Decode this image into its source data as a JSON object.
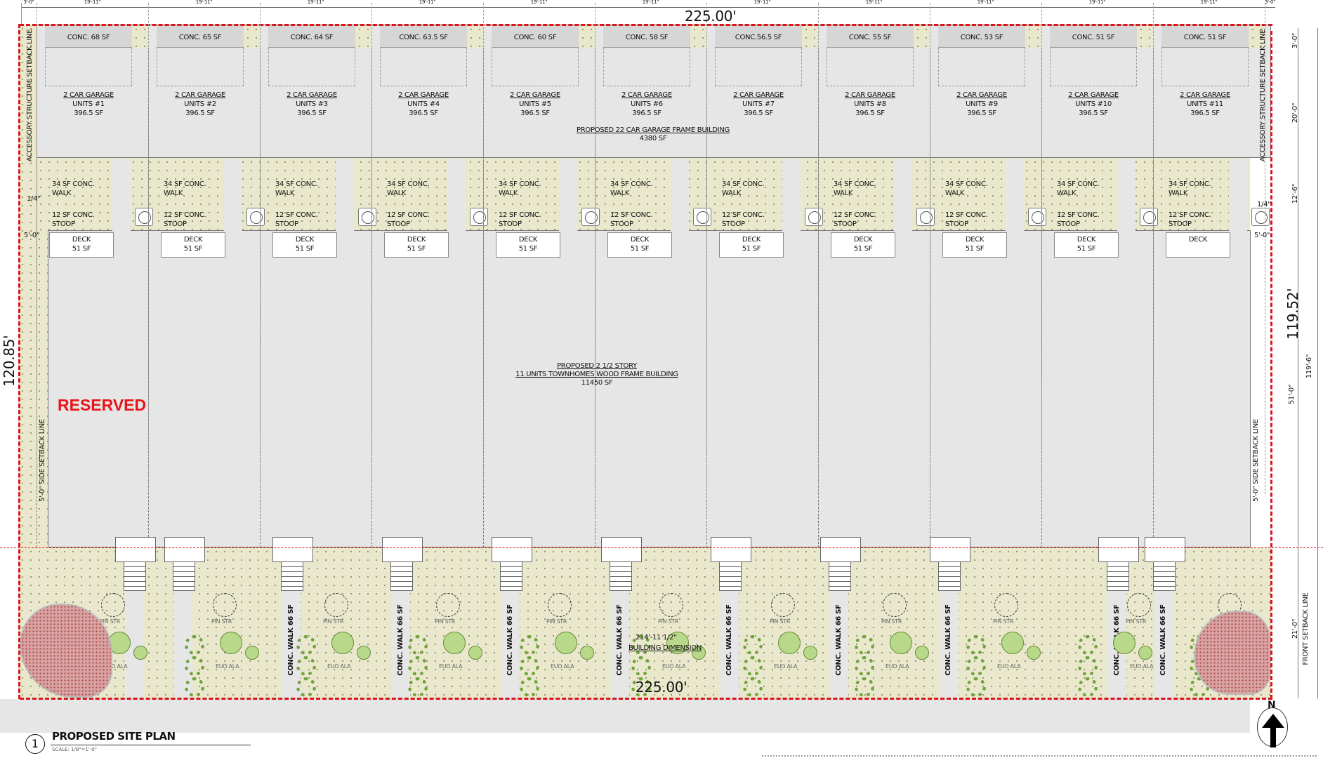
{
  "dimensions": {
    "top_total": "225.00'",
    "bottom_total": "225.00'",
    "left_depth": "120.85'",
    "right_depth": "119.52'",
    "right_inner": "119'-6\"",
    "right_building": "51'-0\"",
    "right_garage": "20'-0\"",
    "right_conc": "3'-0\"",
    "right_walk": "12'-6\"",
    "right_front": "21'-0\"",
    "top_segments": [
      "3'-0\"",
      "19'-11\"",
      "19'-11\"",
      "19'-11\"",
      "19'-11\"",
      "19'-11\"",
      "19'-11\"",
      "19'-11\"",
      "19'-11\"",
      "19'-11\"",
      "19'-11\"",
      "19'-11\"",
      "3'-0\""
    ],
    "left_quarter": "1/4\"",
    "left_five": "5'-0\"",
    "right_quarter": "1/4\"",
    "right_five": "5'-0\"",
    "building_dimension_value": "214'-11 1/2\"",
    "building_dimension_label": "BUILDING DIMENSION"
  },
  "setback_labels": {
    "accessory": "ACCESSORY STRUCTURE SETBACK LINE",
    "side": "5'-0\" SIDE SETBACK LINE",
    "front": "FRONT SETBACK LINE"
  },
  "reserved": "RESERVED",
  "reserved_color": "#e8141b",
  "property_line_color": "#d9141b",
  "garage_building": {
    "title": "PROPOSED 22 CAR  GARAGE FRAME BUILDING",
    "area": "4380 SF"
  },
  "townhome_building": {
    "line1": "PROPOSED 2 1/2 STORY",
    "line2": "11 UNITS TOWNHOMES WOOD FRAME BUILDING",
    "area": "11450 SF"
  },
  "units": [
    {
      "conc": "CONC. 68 SF",
      "garage": "2 CAR GARAGE",
      "unit": "UNITS #1",
      "area": "396.5 SF",
      "deck": "DECK",
      "deck_area": "51 SF"
    },
    {
      "conc": "CONC. 65 SF",
      "garage": "2 CAR GARAGE",
      "unit": "UNITS #2",
      "area": "396.5 SF",
      "deck": "DECK",
      "deck_area": "51 SF"
    },
    {
      "conc": "CONC. 64 SF",
      "garage": "2 CAR GARAGE",
      "unit": "UNITS #3",
      "area": "396.5 SF",
      "deck": "DECK",
      "deck_area": "51 SF"
    },
    {
      "conc": "CONC. 63.5 SF",
      "garage": "2 CAR GARAGE",
      "unit": "UNITS #4",
      "area": "396.5 SF",
      "deck": "DECK",
      "deck_area": "51 SF"
    },
    {
      "conc": "CONC. 60 SF",
      "garage": "2 CAR GARAGE",
      "unit": "UNITS #5",
      "area": "396.5 SF",
      "deck": "DECK",
      "deck_area": "51 SF"
    },
    {
      "conc": "CONC. 58 SF",
      "garage": "2 CAR GARAGE",
      "unit": "UNITS #6",
      "area": "396.5 SF",
      "deck": "DECK",
      "deck_area": "51 SF"
    },
    {
      "conc": "CONC.56.5 SF",
      "garage": "2 CAR GARAGE",
      "unit": "UNITS #7",
      "area": "396.5 SF",
      "deck": "DECK",
      "deck_area": "51 SF"
    },
    {
      "conc": "CONC. 55 SF",
      "garage": "2 CAR GARAGE",
      "unit": "UNITS #8",
      "area": "396.5 SF",
      "deck": "DECK",
      "deck_area": "51 SF"
    },
    {
      "conc": "CONC. 53 SF",
      "garage": "2 CAR GARAGE",
      "unit": "UNITS #9",
      "area": "396.5 SF",
      "deck": "DECK",
      "deck_area": "51 SF"
    },
    {
      "conc": "CONC. 51 SF",
      "garage": "2 CAR GARAGE",
      "unit": "UNITS #10",
      "area": "396.5 SF",
      "deck": "DECK",
      "deck_area": "51 SF"
    },
    {
      "conc": "CONC. 51 SF",
      "garage": "2 CAR GARAGE",
      "unit": "UNITS #11",
      "area": "396.5 SF",
      "deck": "DECK",
      "deck_area": ""
    }
  ],
  "walk_label": [
    "34 SF CONC.",
    "WALK"
  ],
  "stoop_label": [
    "12 SF CONC.",
    "STOOP"
  ],
  "front_walk_label": "CONC. WALK  66 SF",
  "plant_labels": {
    "pine": "PIN STR",
    "euonymus": "EUO ALA"
  },
  "title": {
    "number": "1",
    "text": "PROPOSED SITE PLAN",
    "scale": "SCALE: 1/8\"=1'-0\""
  },
  "north_label": "N"
}
